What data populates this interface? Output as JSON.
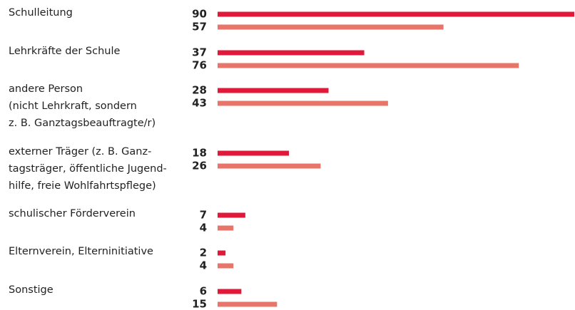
{
  "chart_data": {
    "type": "bar",
    "orientation": "horizontal",
    "categories": [
      [
        "Schulleitung"
      ],
      [
        "Lehrkräfte der Schule"
      ],
      [
        "andere Person",
        "(nicht Lehrkraft, sondern",
        "z. B. Ganztagsbeauftragte/r)"
      ],
      [
        "externer Träger (z. B. Ganz-",
        "tagsträger, öffentliche Jugend-",
        "hilfe, freie Wohlfahrtspflege)"
      ],
      [
        "schulischer Förderverein"
      ],
      [
        "Elternverein, Elterninitiative"
      ],
      [
        "Sonstige"
      ]
    ],
    "series": [
      {
        "color": "#e0193a",
        "values": [
          90,
          37,
          28,
          18,
          7,
          2,
          6
        ]
      },
      {
        "color": "#e8756a",
        "values": [
          57,
          76,
          43,
          26,
          4,
          4,
          15
        ]
      }
    ],
    "xlim": [
      0,
      90
    ]
  }
}
